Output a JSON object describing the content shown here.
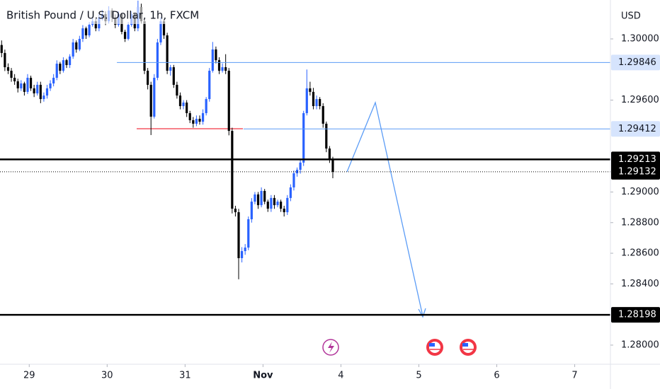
{
  "chart_data": {
    "type": "candlestick",
    "title": "British Pound / U.S. Dollar, 1h, FXCM",
    "currency": "USD",
    "up_color": "#2962ff",
    "down_color": "#000000",
    "xlim": [
      0,
      188
    ],
    "ylim": [
      1.27875,
      1.30254
    ],
    "xticks": [
      {
        "value": 9,
        "label": "29"
      },
      {
        "value": 33,
        "label": "30"
      },
      {
        "value": 57,
        "label": "31"
      },
      {
        "value": 81,
        "label": "Nov"
      },
      {
        "value": 105,
        "label": "4"
      },
      {
        "value": 129,
        "label": "5"
      },
      {
        "value": 153,
        "label": "6"
      },
      {
        "value": 177,
        "label": "7"
      }
    ],
    "yticks": [
      {
        "value": 1.3,
        "label": "1.30000"
      },
      {
        "value": 1.296,
        "label": "1.29600"
      },
      {
        "value": 1.29,
        "label": "1.29000"
      },
      {
        "value": 1.288,
        "label": "1.28800"
      },
      {
        "value": 1.286,
        "label": "1.28600"
      },
      {
        "value": 1.284,
        "label": "1.28400"
      },
      {
        "value": 1.28,
        "label": "1.28000"
      }
    ],
    "levels": [
      {
        "value": 1.29846,
        "color": "#5b9cf6",
        "start": 36
      },
      {
        "value": 1.29412,
        "color": "#5b9cf6",
        "start": 75
      },
      {
        "value": 1.29213,
        "color": "#000000",
        "start": 0
      },
      {
        "value": 1.29132,
        "color": "#000000",
        "start": 0,
        "dotted": true
      },
      {
        "value": 1.28198,
        "color": "#000000",
        "start": 0
      }
    ],
    "candles": [
      [
        1.2996,
        1.2999,
        1.2988,
        1.29908
      ],
      [
        1.29908,
        1.2993,
        1.2979,
        1.29815
      ],
      [
        1.29815,
        1.2984,
        1.2977,
        1.29792
      ],
      [
        1.29792,
        1.2981,
        1.2972,
        1.29746
      ],
      [
        1.29746,
        1.2977,
        1.297,
        1.29723
      ],
      [
        1.29723,
        1.2974,
        1.2965,
        1.29677
      ],
      [
        1.29677,
        1.2973,
        1.2966,
        1.29709
      ],
      [
        1.29709,
        1.2972,
        1.2963,
        1.29654
      ],
      [
        1.29654,
        1.2977,
        1.2964,
        1.29746
      ],
      [
        1.29746,
        1.2976,
        1.2966,
        1.29677
      ],
      [
        1.29677,
        1.297,
        1.2962,
        1.29644
      ],
      [
        1.29644,
        1.2972,
        1.2963,
        1.297
      ],
      [
        1.297,
        1.2972,
        1.2958,
        1.29607
      ],
      [
        1.29607,
        1.2965,
        1.2959,
        1.2963
      ],
      [
        1.2963,
        1.297,
        1.2961,
        1.29677
      ],
      [
        1.29677,
        1.2973,
        1.2966,
        1.29709
      ],
      [
        1.29709,
        1.2977,
        1.2969,
        1.29746
      ],
      [
        1.29746,
        1.2986,
        1.2973,
        1.29838
      ],
      [
        1.29838,
        1.2985,
        1.2977,
        1.29792
      ],
      [
        1.29792,
        1.2988,
        1.2978,
        1.29861
      ],
      [
        1.29861,
        1.2987,
        1.2981,
        1.29829
      ],
      [
        1.29829,
        1.299,
        1.2981,
        1.29885
      ],
      [
        1.29885,
        1.3,
        1.2987,
        1.29977
      ],
      [
        1.29977,
        1.2999,
        1.2991,
        1.29931
      ],
      [
        1.29931,
        1.3002,
        1.2992,
        1.3
      ],
      [
        1.3,
        1.3009,
        1.2998,
        1.30069
      ],
      [
        1.30069,
        1.3008,
        1.3,
        1.30023
      ],
      [
        1.30023,
        1.3011,
        1.3001,
        1.30092
      ],
      [
        1.30092,
        1.3014,
        1.3008,
        1.30115
      ],
      [
        1.30115,
        1.3013,
        1.3005,
        1.30069
      ],
      [
        1.30069,
        1.3016,
        1.3005,
        1.30139
      ],
      [
        1.30139,
        1.3019,
        1.3012,
        1.30162
      ],
      [
        1.30162,
        1.3018,
        1.3009,
        1.30115
      ],
      [
        1.30115,
        1.3021,
        1.301,
        1.30185
      ],
      [
        1.30185,
        1.302,
        1.3011,
        1.30139
      ],
      [
        1.30139,
        1.3016,
        1.3007,
        1.30092
      ],
      [
        1.30092,
        1.3018,
        1.3008,
        1.30162
      ],
      [
        1.30162,
        1.3017,
        1.3003,
        1.30046
      ],
      [
        1.30046,
        1.3006,
        1.2998,
        1.3
      ],
      [
        1.3,
        1.3011,
        1.2999,
        1.30092
      ],
      [
        1.30092,
        1.3018,
        1.3008,
        1.30162
      ],
      [
        1.30162,
        1.3017,
        1.3005,
        1.30069
      ],
      [
        1.30069,
        1.3025,
        1.3005,
        1.30208
      ],
      [
        1.30208,
        1.3023,
        1.301,
        1.30115
      ],
      [
        1.30115,
        1.3013,
        1.2977,
        1.29792
      ],
      [
        1.29792,
        1.2981,
        1.2967,
        1.297
      ],
      [
        1.297,
        1.2972,
        1.29372,
        1.29492
      ],
      [
        1.29492,
        1.2977,
        1.2948,
        1.29746
      ],
      [
        1.29746,
        1.3,
        1.2973,
        1.29977
      ],
      [
        1.29977,
        1.3014,
        1.2996,
        1.30115
      ],
      [
        1.30115,
        1.3013,
        1.3,
        1.30023
      ],
      [
        1.30023,
        1.3004,
        1.2977,
        1.29792
      ],
      [
        1.29792,
        1.2983,
        1.2976,
        1.29815
      ],
      [
        1.29815,
        1.2983,
        1.2968,
        1.297
      ],
      [
        1.297,
        1.2972,
        1.2961,
        1.2963
      ],
      [
        1.2963,
        1.2965,
        1.2954,
        1.29561
      ],
      [
        1.29561,
        1.296,
        1.2954,
        1.29584
      ],
      [
        1.29584,
        1.296,
        1.2949,
        1.29515
      ],
      [
        1.29515,
        1.2953,
        1.2945,
        1.29469
      ],
      [
        1.29469,
        1.2949,
        1.2942,
        1.29446
      ],
      [
        1.29446,
        1.295,
        1.2943,
        1.29478
      ],
      [
        1.29478,
        1.295,
        1.2944,
        1.29459
      ],
      [
        1.29459,
        1.2954,
        1.2944,
        1.29515
      ],
      [
        1.29515,
        1.2962,
        1.295,
        1.29607
      ],
      [
        1.29607,
        1.2981,
        1.2959,
        1.29792
      ],
      [
        1.29792,
        1.2998,
        1.2978,
        1.29931
      ],
      [
        1.29931,
        1.2995,
        1.2984,
        1.29861
      ],
      [
        1.29861,
        1.2988,
        1.2977,
        1.29792
      ],
      [
        1.29792,
        1.2984,
        1.2978,
        1.29815
      ],
      [
        1.29815,
        1.299,
        1.2977,
        1.29792
      ],
      [
        1.29792,
        1.2981,
        1.2937,
        1.29399
      ],
      [
        1.29399,
        1.2942,
        1.2886,
        1.28891
      ],
      [
        1.28891,
        1.2891,
        1.2884,
        1.28868
      ],
      [
        1.28868,
        1.2889,
        1.2843,
        1.28568
      ],
      [
        1.28568,
        1.2864,
        1.2854,
        1.28614
      ],
      [
        1.28614,
        1.2866,
        1.2859,
        1.28637
      ],
      [
        1.28637,
        1.2884,
        1.2862,
        1.28822
      ],
      [
        1.28822,
        1.2896,
        1.288,
        1.28937
      ],
      [
        1.28937,
        1.29,
        1.2892,
        1.28984
      ],
      [
        1.28984,
        1.29,
        1.2889,
        1.28914
      ],
      [
        1.28914,
        1.2903,
        1.289,
        1.29007
      ],
      [
        1.29007,
        1.2902,
        1.2892,
        1.28937
      ],
      [
        1.28937,
        1.2895,
        1.2887,
        1.28891
      ],
      [
        1.28891,
        1.2898,
        1.2887,
        1.28961
      ],
      [
        1.28961,
        1.2898,
        1.2889,
        1.28914
      ],
      [
        1.28914,
        1.2895,
        1.289,
        1.28937
      ],
      [
        1.28937,
        1.2895,
        1.2887,
        1.28891
      ],
      [
        1.28891,
        1.2891,
        1.2884,
        1.28868
      ],
      [
        1.28868,
        1.2898,
        1.2885,
        1.28961
      ],
      [
        1.28961,
        1.2905,
        1.2894,
        1.2903
      ],
      [
        1.2903,
        1.2914,
        1.2901,
        1.29122
      ],
      [
        1.29122,
        1.2916,
        1.291,
        1.29145
      ],
      [
        1.29145,
        1.2921,
        1.2912,
        1.29192
      ],
      [
        1.29192,
        1.2953,
        1.2917,
        1.29515
      ],
      [
        1.29515,
        1.298,
        1.295,
        1.29677
      ],
      [
        1.29677,
        1.2972,
        1.2963,
        1.29654
      ],
      [
        1.29654,
        1.2968,
        1.2954,
        1.29561
      ],
      [
        1.29561,
        1.2963,
        1.2954,
        1.29607
      ],
      [
        1.29607,
        1.2962,
        1.2954,
        1.29561
      ],
      [
        1.29561,
        1.2958,
        1.2942,
        1.29446
      ],
      [
        1.29446,
        1.2946,
        1.2926,
        1.29284
      ],
      [
        1.29284,
        1.293,
        1.2919,
        1.29215
      ],
      [
        1.29215,
        1.2923,
        1.2909,
        1.29132
      ]
    ]
  }
}
